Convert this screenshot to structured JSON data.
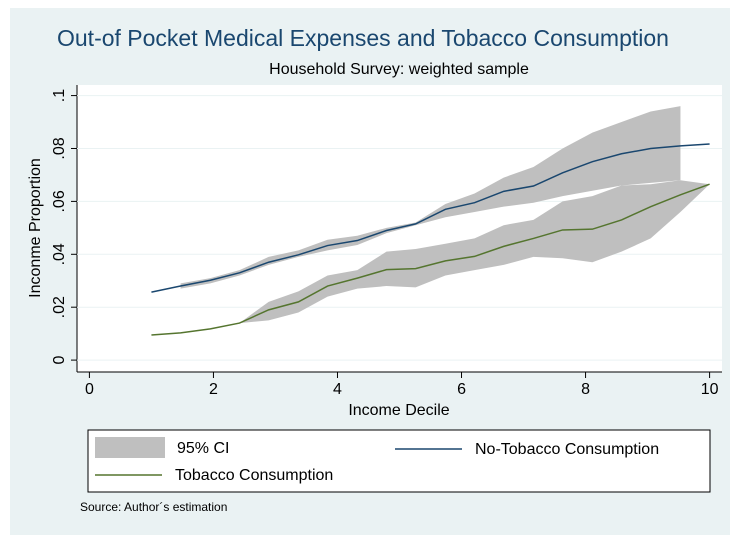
{
  "chart_data": {
    "type": "line",
    "title": "Out-of Pocket Medical Expenses and Tobacco Consumption",
    "subtitle": "Household Survey: weighted sample",
    "x_label": "Income Decile",
    "y_label": "Inconme Proportion",
    "note": "Source: Author´s estimation",
    "x": [
      1,
      1.47,
      1.95,
      2.42,
      2.89,
      3.37,
      3.84,
      4.32,
      4.79,
      5.26,
      5.74,
      6.21,
      6.68,
      7.16,
      7.63,
      8.11,
      8.58,
      9.05,
      9.53,
      10
    ],
    "xlim": [
      -0.2,
      10.2
    ],
    "xticks": [
      0,
      2,
      4,
      6,
      8,
      10
    ],
    "ylim": [
      -0.0045,
      0.104
    ],
    "yticks": [
      0,
      {
        "value": 0.02,
        "label": ".02"
      },
      {
        "value": 0.04,
        "label": ".04"
      },
      {
        "value": 0.06,
        "label": ".06"
      },
      {
        "value": 0.08,
        "label": ".08"
      },
      {
        "value": 0.1,
        "label": ".1"
      }
    ],
    "grid": true,
    "ci": {
      "name": "95% CI",
      "color": "#bfbfbf",
      "bands": [
        {
          "lower": [
            null,
            0.027,
            0.029,
            0.032,
            0.036,
            0.039,
            0.0415,
            0.0435,
            0.048,
            0.051,
            0.054,
            0.056,
            0.058,
            0.0595,
            0.062,
            0.064,
            0.066,
            0.067,
            0.068,
            null
          ],
          "upper": [
            null,
            0.029,
            0.031,
            0.034,
            0.039,
            0.0415,
            0.0455,
            0.047,
            0.05,
            0.052,
            0.059,
            0.063,
            0.069,
            0.073,
            0.08,
            0.086,
            0.09,
            0.094,
            0.096,
            null
          ]
        },
        {
          "lower": [
            null,
            null,
            null,
            0.014,
            0.015,
            0.018,
            0.024,
            0.027,
            0.028,
            0.0275,
            0.032,
            0.034,
            0.036,
            0.039,
            0.0385,
            0.037,
            0.041,
            0.046,
            0.056,
            0.0665
          ],
          "upper": [
            null,
            null,
            null,
            0.014,
            0.022,
            0.026,
            0.032,
            0.034,
            0.041,
            0.042,
            0.044,
            0.046,
            0.051,
            0.053,
            0.06,
            0.062,
            0.066,
            0.0665,
            0.068,
            0.0665
          ]
        }
      ]
    },
    "series": [
      {
        "name": "No-Tobacco Consumption",
        "color": "#1a476f",
        "values": [
          0.0257,
          0.028,
          0.0302,
          0.033,
          0.037,
          0.0398,
          0.0433,
          0.0452,
          0.049,
          0.0515,
          0.057,
          0.0595,
          0.0638,
          0.0658,
          0.0708,
          0.075,
          0.078,
          0.08,
          0.081,
          0.0817
        ]
      },
      {
        "name": "Tobacco Consumption",
        "color": "#55752f",
        "values": [
          0.0095,
          0.0103,
          0.0118,
          0.014,
          0.019,
          0.022,
          0.028,
          0.031,
          0.0342,
          0.0346,
          0.0375,
          0.0392,
          0.043,
          0.046,
          0.0492,
          0.0495,
          0.053,
          0.058,
          0.0625,
          0.0665
        ]
      }
    ]
  }
}
